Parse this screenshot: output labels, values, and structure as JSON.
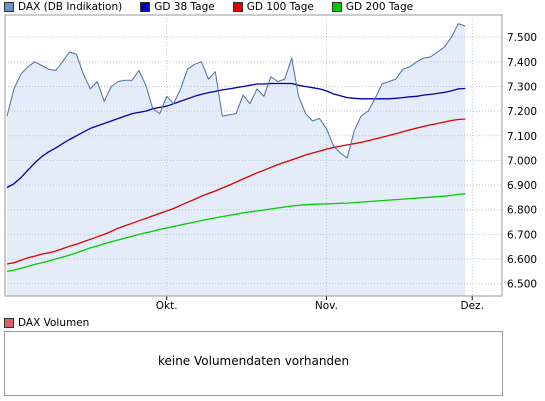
{
  "legend": {
    "main": [
      {
        "label": "DAX (DB Indikation)",
        "color": "#6f8fc7"
      },
      {
        "label": "GD 38 Tage",
        "color": "#0000bb"
      },
      {
        "label": "GD 100 Tage",
        "color": "#dd0000"
      },
      {
        "label": "GD 200 Tage",
        "color": "#00cc00"
      }
    ],
    "volume": {
      "label": "DAX Volumen",
      "color": "#e06060"
    }
  },
  "volume_message": "keine Volumendaten vorhanden",
  "chart_data": {
    "type": "line",
    "ylim": [
      6450,
      7590
    ],
    "y_ticks": [
      {
        "value": 6500,
        "label": "6.500"
      },
      {
        "value": 6600,
        "label": "6.600"
      },
      {
        "value": 6700,
        "label": "6.700"
      },
      {
        "value": 6800,
        "label": "6.800"
      },
      {
        "value": 6900,
        "label": "6.900"
      },
      {
        "value": 7000,
        "label": "7.000"
      },
      {
        "value": 7100,
        "label": "7.100"
      },
      {
        "value": 7200,
        "label": "7.200"
      },
      {
        "value": 7300,
        "label": "7.300"
      },
      {
        "value": 7400,
        "label": "7.400"
      },
      {
        "value": 7500,
        "label": "7.500"
      }
    ],
    "x_ticks": [
      {
        "index": 23,
        "label": "Okt."
      },
      {
        "index": 46,
        "label": "Nov."
      },
      {
        "index": 67,
        "label": "Dez."
      }
    ],
    "x_count": 72,
    "grid": true,
    "legend_position": "top",
    "series": [
      {
        "name": "DAX (DB Indikation)",
        "color": "#4a6ea8",
        "fill": "#e4ecf9",
        "values": [
          7180,
          7290,
          7350,
          7380,
          7400,
          7385,
          7370,
          7365,
          7400,
          7440,
          7430,
          7350,
          7290,
          7320,
          7240,
          7300,
          7320,
          7325,
          7325,
          7365,
          7305,
          7210,
          7190,
          7260,
          7230,
          7290,
          7370,
          7390,
          7400,
          7330,
          7360,
          7180,
          7185,
          7190,
          7265,
          7230,
          7290,
          7260,
          7340,
          7320,
          7330,
          7415,
          7260,
          7190,
          7160,
          7170,
          7130,
          7060,
          7030,
          7010,
          7120,
          7180,
          7200,
          7250,
          7310,
          7320,
          7330,
          7370,
          7380,
          7400,
          7415,
          7420,
          7440,
          7460,
          7500,
          7555,
          7545
        ]
      },
      {
        "name": "GD 38 Tage",
        "color": "#0000aa",
        "values": [
          6890,
          6905,
          6930,
          6960,
          6990,
          7015,
          7035,
          7050,
          7068,
          7085,
          7100,
          7115,
          7130,
          7140,
          7150,
          7160,
          7170,
          7180,
          7190,
          7195,
          7200,
          7210,
          7215,
          7220,
          7230,
          7240,
          7250,
          7260,
          7268,
          7275,
          7280,
          7286,
          7290,
          7295,
          7300,
          7305,
          7310,
          7310,
          7312,
          7312,
          7312,
          7312,
          7305,
          7300,
          7295,
          7290,
          7282,
          7270,
          7262,
          7255,
          7252,
          7250,
          7250,
          7250,
          7250,
          7250,
          7252,
          7255,
          7258,
          7260,
          7265,
          7268,
          7272,
          7276,
          7282,
          7290,
          7292
        ]
      },
      {
        "name": "GD 100 Tage",
        "color": "#dd0000",
        "values": [
          6580,
          6585,
          6595,
          6605,
          6612,
          6620,
          6625,
          6632,
          6642,
          6652,
          6660,
          6670,
          6680,
          6690,
          6700,
          6712,
          6725,
          6735,
          6745,
          6755,
          6765,
          6775,
          6785,
          6795,
          6805,
          6818,
          6830,
          6842,
          6855,
          6866,
          6876,
          6888,
          6900,
          6912,
          6925,
          6937,
          6950,
          6960,
          6972,
          6983,
          6993,
          7002,
          7012,
          7022,
          7030,
          7038,
          7046,
          7052,
          7058,
          7063,
          7068,
          7073,
          7080,
          7087,
          7094,
          7101,
          7108,
          7116,
          7124,
          7131,
          7138,
          7144,
          7150,
          7156,
          7162,
          7166,
          7168
        ]
      },
      {
        "name": "GD 200 Tage",
        "color": "#00cc00",
        "values": [
          6550,
          6555,
          6562,
          6570,
          6578,
          6585,
          6592,
          6600,
          6608,
          6616,
          6625,
          6635,
          6645,
          6653,
          6662,
          6670,
          6677,
          6685,
          6692,
          6700,
          6707,
          6713,
          6720,
          6726,
          6732,
          6738,
          6744,
          6750,
          6756,
          6762,
          6767,
          6772,
          6777,
          6782,
          6787,
          6791,
          6795,
          6799,
          6803,
          6807,
          6811,
          6815,
          6818,
          6820,
          6822,
          6823,
          6824,
          6825,
          6826,
          6827,
          6829,
          6831,
          6833,
          6835,
          6837,
          6839,
          6841,
          6843,
          6845,
          6847,
          6849,
          6851,
          6853,
          6855,
          6858,
          6862,
          6865
        ]
      }
    ]
  }
}
